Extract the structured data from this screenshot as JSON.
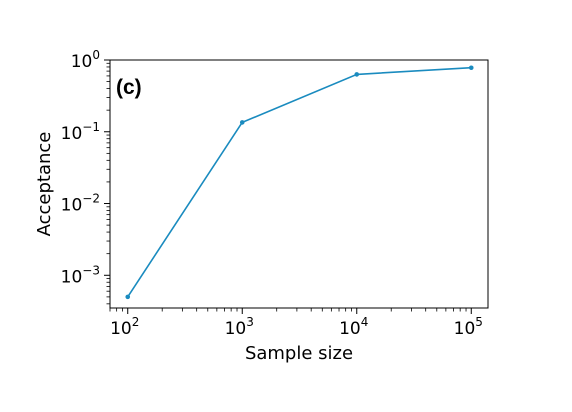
{
  "chart_data": {
    "type": "line",
    "panel_label": "(c)",
    "xlabel": "Sample size",
    "ylabel": "Acceptance",
    "xscale": "log",
    "yscale": "log",
    "xlim": [
      70,
      140000
    ],
    "ylim": [
      0.00035,
      1.0
    ],
    "x_ticks": [
      {
        "base": "10",
        "exp": "2",
        "value": 100
      },
      {
        "base": "10",
        "exp": "3",
        "value": 1000
      },
      {
        "base": "10",
        "exp": "4",
        "value": 10000
      },
      {
        "base": "10",
        "exp": "5",
        "value": 100000
      }
    ],
    "y_ticks": [
      {
        "base": "10",
        "exp": "0",
        "value": 1
      },
      {
        "base": "10",
        "exp": "−1",
        "value": 0.1
      },
      {
        "base": "10",
        "exp": "−2",
        "value": 0.01
      },
      {
        "base": "10",
        "exp": "−3",
        "value": 0.001
      }
    ],
    "grid": false,
    "legend": "none",
    "series": [
      {
        "color": "#1a8bbf",
        "x": [
          100,
          1000,
          10000,
          100000
        ],
        "y": [
          0.0005,
          0.135,
          0.63,
          0.78
        ]
      }
    ]
  }
}
